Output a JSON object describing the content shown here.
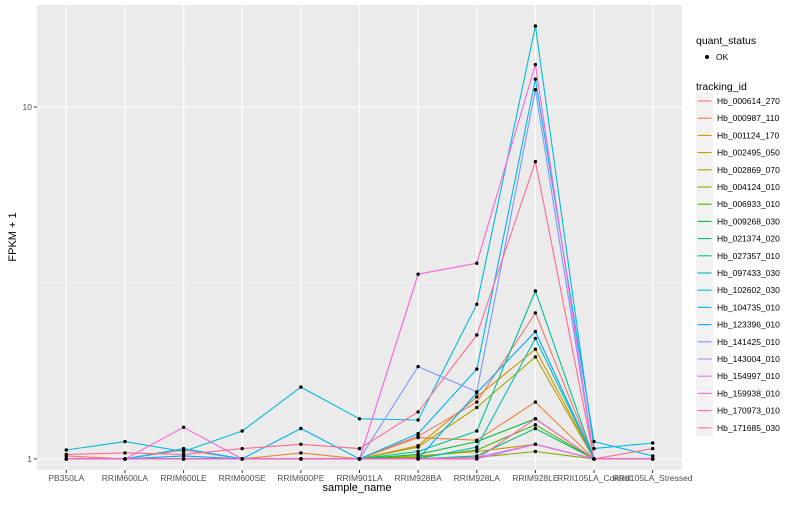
{
  "chart_data": {
    "type": "line",
    "xlabel": "sample_name",
    "ylabel": "FPKM + 1",
    "y_scale": "log10",
    "ylim": [
      0.93,
      19.5
    ],
    "y_ticks": [
      {
        "value": 1,
        "label": "1"
      },
      {
        "value": 10,
        "label": "10"
      }
    ],
    "grid": true,
    "legend_position": "right",
    "categories": [
      "PB350LA",
      "RRIM600LA",
      "RRIM600LE",
      "RRIM600SE",
      "RRIM600PE",
      "RRIM901LA",
      "RRIM928BA",
      "RRIM928LA",
      "RRIM928LE",
      "RRII105LA_Control",
      "RRII105LA_Stressed"
    ],
    "shape_legend": {
      "title": "quant_status",
      "items": [
        "OK"
      ]
    },
    "color_legend_title": "tracking_id",
    "series": [
      {
        "name": "Hb_000614_270",
        "color": "#F8766D",
        "values": [
          1.02,
          1.0,
          1.06,
          1.0,
          1.0,
          1.0,
          1.16,
          1.45,
          2.6,
          1.0,
          1.0
        ]
      },
      {
        "name": "Hb_000987_110",
        "color": "#EB8335",
        "values": [
          1.0,
          1.0,
          1.0,
          1.0,
          1.04,
          1.0,
          1.15,
          1.13,
          1.45,
          1.0,
          1.0
        ]
      },
      {
        "name": "Hb_001124_170",
        "color": "#DA8F00",
        "values": [
          1.0,
          1.0,
          1.0,
          1.0,
          1.0,
          1.0,
          1.09,
          1.5,
          2.05,
          1.0,
          1.0
        ]
      },
      {
        "name": "Hb_002495_050",
        "color": "#C49A00",
        "values": [
          1.0,
          1.0,
          1.0,
          1.0,
          1.0,
          1.0,
          1.02,
          1.05,
          1.1,
          1.0,
          1.0
        ]
      },
      {
        "name": "Hb_002869_070",
        "color": "#A9A400",
        "values": [
          1.0,
          1.0,
          1.0,
          1.0,
          1.0,
          1.0,
          1.08,
          1.4,
          1.95,
          1.0,
          1.0
        ]
      },
      {
        "name": "Hb_004124_010",
        "color": "#86AC00",
        "values": [
          1.0,
          1.0,
          1.0,
          1.0,
          1.0,
          1.0,
          1.0,
          1.01,
          1.05,
          1.0,
          1.0
        ]
      },
      {
        "name": "Hb_006933_010",
        "color": "#53B400",
        "values": [
          1.0,
          1.0,
          1.0,
          1.0,
          1.0,
          1.0,
          1.01,
          1.06,
          1.25,
          1.0,
          1.0
        ]
      },
      {
        "name": "Hb_009268_030",
        "color": "#00BA38",
        "values": [
          1.0,
          1.0,
          1.0,
          1.0,
          1.0,
          1.0,
          1.03,
          1.12,
          1.3,
          1.0,
          1.0
        ]
      },
      {
        "name": "Hb_021374_020",
        "color": "#00BE6C",
        "values": [
          1.0,
          1.0,
          1.0,
          1.0,
          1.0,
          1.0,
          1.0,
          1.02,
          1.22,
          1.0,
          1.0
        ]
      },
      {
        "name": "Hb_027357_010",
        "color": "#00C094",
        "values": [
          1.0,
          1.0,
          1.0,
          1.0,
          1.0,
          1.0,
          1.05,
          1.2,
          3.0,
          1.0,
          1.0
        ]
      },
      {
        "name": "Hb_097433_030",
        "color": "#00C0B7",
        "values": [
          1.0,
          1.0,
          1.0,
          1.0,
          1.0,
          1.0,
          1.0,
          1.08,
          2.2,
          1.0,
          1.0
        ]
      },
      {
        "name": "Hb_102602_030",
        "color": "#00BCD6",
        "values": [
          1.06,
          1.12,
          1.05,
          1.2,
          1.6,
          1.3,
          1.29,
          2.75,
          17.0,
          1.07,
          1.11
        ]
      },
      {
        "name": "Hb_104735_010",
        "color": "#00B4F0",
        "values": [
          1.0,
          1.0,
          1.07,
          1.0,
          1.22,
          1.0,
          1.18,
          1.8,
          12.0,
          1.12,
          1.02
        ]
      },
      {
        "name": "Hb_123396_010",
        "color": "#00A8FF",
        "values": [
          1.0,
          1.0,
          1.02,
          1.0,
          1.0,
          1.0,
          1.0,
          1.54,
          2.3,
          1.0,
          1.0
        ]
      },
      {
        "name": "Hb_141425_010",
        "color": "#7F96FF",
        "values": [
          1.0,
          1.0,
          1.0,
          1.0,
          1.0,
          1.0,
          1.83,
          1.55,
          11.2,
          1.0,
          1.0
        ]
      },
      {
        "name": "Hb_143004_010",
        "color": "#BC81FF",
        "values": [
          1.0,
          1.0,
          1.0,
          1.0,
          1.0,
          1.0,
          1.0,
          1.01,
          1.1,
          1.0,
          1.0
        ]
      },
      {
        "name": "Hb_154997_010",
        "color": "#E26EF7",
        "values": [
          1.0,
          1.0,
          1.0,
          1.0,
          1.0,
          1.0,
          1.0,
          1.0,
          1.1,
          1.0,
          1.0
        ]
      },
      {
        "name": "Hb_159938_010",
        "color": "#F863DF",
        "values": [
          1.0,
          1.0,
          1.23,
          1.0,
          1.0,
          1.0,
          3.35,
          3.6,
          13.2,
          1.0,
          1.0
        ]
      },
      {
        "name": "Hb_170973_010",
        "color": "#FF62BC",
        "values": [
          1.0,
          1.0,
          1.0,
          1.0,
          1.0,
          1.0,
          1.0,
          1.0,
          1.3,
          1.0,
          1.0
        ]
      },
      {
        "name": "Hb_171685_030",
        "color": "#FF6C91",
        "values": [
          1.03,
          1.04,
          1.03,
          1.07,
          1.1,
          1.07,
          1.36,
          2.25,
          7.0,
          1.0,
          1.07
        ]
      }
    ]
  }
}
